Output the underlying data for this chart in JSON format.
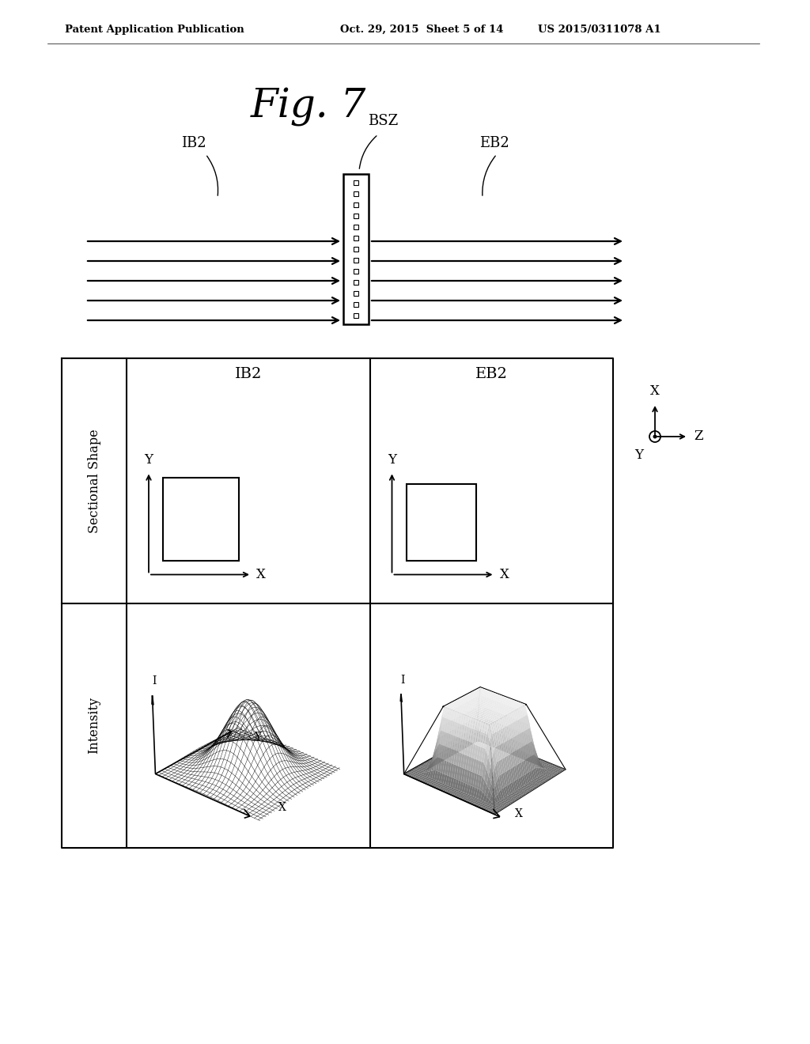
{
  "bg_color": "#ffffff",
  "header_left": "Patent Application Publication",
  "header_mid": "Oct. 29, 2015  Sheet 5 of 14",
  "header_right": "US 2015/0311078 A1",
  "fig_title": "Fig. 7",
  "bsz_label": "BSZ",
  "ib2_label": "IB2",
  "eb2_label": "EB2",
  "num_beam_lines": 5,
  "table_col_labels": [
    "IB2",
    "EB2"
  ],
  "row_label_1": "Sectional Shape",
  "row_label_2": "Intensity",
  "coord_x_label": "X",
  "coord_y_label": "Y",
  "coord_z_label": "Z"
}
